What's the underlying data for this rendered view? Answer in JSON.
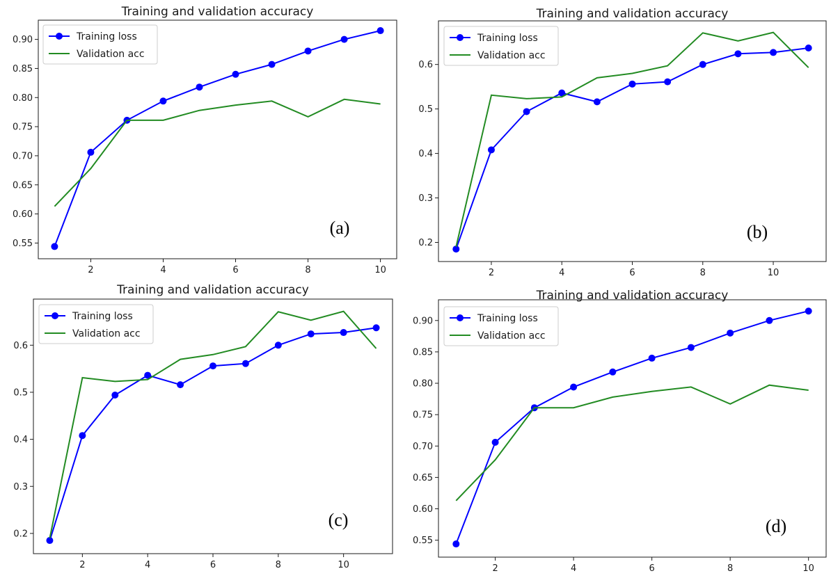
{
  "colors": {
    "training": "#0000ff",
    "validation": "#228b22",
    "axis": "#1a1a1a"
  },
  "chart_data": [
    {
      "type": "line",
      "panel_label": "(a)",
      "title": "Training and validation accuracy",
      "xlabel": "",
      "ylabel": "",
      "xlim": [
        0.55,
        10.45
      ],
      "ylim": [
        0.523,
        0.933
      ],
      "xticks": [
        "2",
        "4",
        "6",
        "8",
        "10"
      ],
      "yticks": [
        "0.55",
        "0.60",
        "0.65",
        "0.70",
        "0.75",
        "0.80",
        "0.85",
        "0.90"
      ],
      "legend": "top-left",
      "grid": false,
      "x": [
        1,
        2,
        3,
        4,
        5,
        6,
        7,
        8,
        9,
        10
      ],
      "series": [
        {
          "name": "Training loss",
          "marker": "circle",
          "values": [
            0.544,
            0.706,
            0.761,
            0.794,
            0.818,
            0.84,
            0.857,
            0.88,
            0.9,
            0.915
          ]
        },
        {
          "name": "Validation acc",
          "marker": "none",
          "values": [
            0.613,
            0.678,
            0.761,
            0.761,
            0.778,
            0.787,
            0.794,
            0.767,
            0.797,
            0.789
          ]
        }
      ]
    },
    {
      "type": "line",
      "panel_label": "(b)",
      "title": "Training and validation accuracy",
      "xlabel": "",
      "ylabel": "",
      "xlim": [
        0.5,
        11.5
      ],
      "ylim": [
        0.157,
        0.698
      ],
      "xticks": [
        "2",
        "4",
        "6",
        "8",
        "10"
      ],
      "yticks": [
        "0.2",
        "0.3",
        "0.4",
        "0.5",
        "0.6"
      ],
      "legend": "top-left",
      "grid": false,
      "x": [
        1,
        2,
        3,
        4,
        5,
        6,
        7,
        8,
        9,
        10,
        11
      ],
      "series": [
        {
          "name": "Training loss",
          "marker": "circle",
          "values": [
            0.185,
            0.408,
            0.494,
            0.536,
            0.516,
            0.556,
            0.561,
            0.6,
            0.624,
            0.627,
            0.637
          ]
        },
        {
          "name": "Validation acc",
          "marker": "none",
          "values": [
            0.19,
            0.531,
            0.523,
            0.527,
            0.57,
            0.58,
            0.597,
            0.671,
            0.653,
            0.672,
            0.593
          ]
        }
      ]
    },
    {
      "type": "line",
      "panel_label": "(c)",
      "title": "Training and validation accuracy",
      "xlabel": "",
      "ylabel": "",
      "xlim": [
        0.5,
        11.5
      ],
      "ylim": [
        0.157,
        0.698
      ],
      "xticks": [
        "2",
        "4",
        "6",
        "8",
        "10"
      ],
      "yticks": [
        "0.2",
        "0.3",
        "0.4",
        "0.5",
        "0.6"
      ],
      "legend": "top-left",
      "grid": false,
      "x": [
        1,
        2,
        3,
        4,
        5,
        6,
        7,
        8,
        9,
        10,
        11
      ],
      "series": [
        {
          "name": "Training loss",
          "marker": "circle",
          "values": [
            0.185,
            0.408,
            0.494,
            0.536,
            0.516,
            0.556,
            0.561,
            0.6,
            0.624,
            0.627,
            0.637
          ]
        },
        {
          "name": "Validation acc",
          "marker": "none",
          "values": [
            0.19,
            0.531,
            0.523,
            0.527,
            0.57,
            0.58,
            0.597,
            0.671,
            0.653,
            0.672,
            0.593
          ]
        }
      ]
    },
    {
      "type": "line",
      "panel_label": "(d)",
      "title": "Training and validation accuracy",
      "xlabel": "",
      "ylabel": "",
      "xlim": [
        0.55,
        10.45
      ],
      "ylim": [
        0.523,
        0.933
      ],
      "xticks": [
        "2",
        "4",
        "6",
        "8",
        "10"
      ],
      "yticks": [
        "0.55",
        "0.60",
        "0.65",
        "0.70",
        "0.75",
        "0.80",
        "0.85",
        "0.90"
      ],
      "legend": "top-left",
      "grid": false,
      "x": [
        1,
        2,
        3,
        4,
        5,
        6,
        7,
        8,
        9,
        10
      ],
      "series": [
        {
          "name": "Training loss",
          "marker": "circle",
          "values": [
            0.544,
            0.706,
            0.761,
            0.794,
            0.818,
            0.84,
            0.857,
            0.88,
            0.9,
            0.915
          ]
        },
        {
          "name": "Validation acc",
          "marker": "none",
          "values": [
            0.613,
            0.678,
            0.761,
            0.761,
            0.778,
            0.787,
            0.794,
            0.767,
            0.797,
            0.789
          ]
        }
      ]
    }
  ]
}
